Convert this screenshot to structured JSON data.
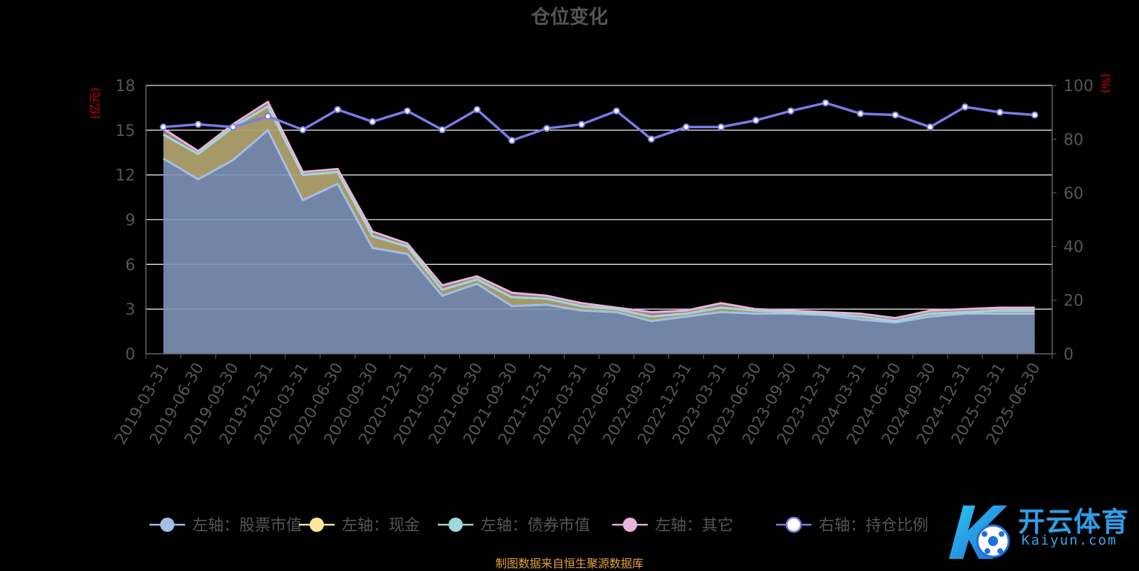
{
  "chart_data": {
    "type": "area",
    "title": "仓位变化",
    "left_unit": "(亿元)",
    "right_unit": "(%)",
    "ylim_left": [
      0,
      18
    ],
    "ylim_right": [
      0,
      100
    ],
    "yticks_left": [
      "0",
      "3",
      "6",
      "9",
      "12",
      "15",
      "18"
    ],
    "yticks_right": [
      "0",
      "20",
      "40",
      "60",
      "80",
      "100"
    ],
    "categories": [
      "2019-03-31",
      "2019-06-30",
      "2019-09-30",
      "2019-12-31",
      "2020-03-31",
      "2020-06-30",
      "2020-09-30",
      "2020-12-31",
      "2021-03-31",
      "2021-06-30",
      "2021-09-30",
      "2021-12-31",
      "2022-03-31",
      "2022-06-30",
      "2022-09-30",
      "2022-12-31",
      "2023-03-31",
      "2023-06-30",
      "2023-09-30",
      "2023-12-31",
      "2024-03-31",
      "2024-06-30",
      "2024-09-30",
      "2024-12-31",
      "2025-03-31",
      "2025-06-30"
    ],
    "series": [
      {
        "name": "左轴：股票市值",
        "axis": "left",
        "color": "#a3bfe6",
        "values": [
          13.1,
          11.7,
          13.0,
          15.0,
          10.3,
          11.4,
          7.1,
          6.7,
          3.9,
          4.7,
          3.2,
          3.3,
          2.9,
          2.8,
          2.2,
          2.5,
          2.8,
          2.7,
          2.7,
          2.6,
          2.3,
          2.1,
          2.5,
          2.7,
          2.7,
          2.7
        ]
      },
      {
        "name": "左轴：现金",
        "axis": "left",
        "color": "#ffe59a",
        "values": [
          1.6,
          1.7,
          2.2,
          1.6,
          1.7,
          0.8,
          0.8,
          0.5,
          0.4,
          0.3,
          0.6,
          0.4,
          0.3,
          0.2,
          0.3,
          0.2,
          0.3,
          0.2,
          0.1,
          0.1,
          0.2,
          0.1,
          0.2,
          0.1,
          0.2,
          0.2
        ]
      },
      {
        "name": "左轴：债券市值",
        "axis": "left",
        "color": "#9ed8d8",
        "values": [
          0,
          0,
          0,
          0,
          0,
          0,
          0,
          0,
          0,
          0,
          0,
          0,
          0,
          0,
          0,
          0,
          0,
          0,
          0,
          0,
          0,
          0,
          0,
          0,
          0,
          0
        ]
      },
      {
        "name": "左轴：其它",
        "axis": "left",
        "color": "#e8b4d8",
        "values": [
          0.4,
          0.2,
          0.2,
          0.3,
          0.2,
          0.2,
          0.3,
          0.2,
          0.3,
          0.2,
          0.3,
          0.2,
          0.2,
          0.1,
          0.3,
          0.2,
          0.3,
          0.1,
          0.1,
          0.1,
          0.2,
          0.2,
          0.2,
          0.2,
          0.2,
          0.2
        ]
      },
      {
        "name": "右轴：持仓比例",
        "axis": "right",
        "color": "#7b7bea",
        "values": [
          84.5,
          85.5,
          84.5,
          88.5,
          83.5,
          91.0,
          86.5,
          90.5,
          83.5,
          91.0,
          79.5,
          84.0,
          85.5,
          90.5,
          80.0,
          84.5,
          84.5,
          87.0,
          90.5,
          93.5,
          89.5,
          89.0,
          84.5,
          92.0,
          90.0,
          89.0
        ]
      }
    ],
    "legend_position": "bottom",
    "grid": true,
    "source_note": "制图数据来自恒生聚源数据库"
  },
  "logo": {
    "cn": "开云体育",
    "en": "Kaiyun.com"
  }
}
